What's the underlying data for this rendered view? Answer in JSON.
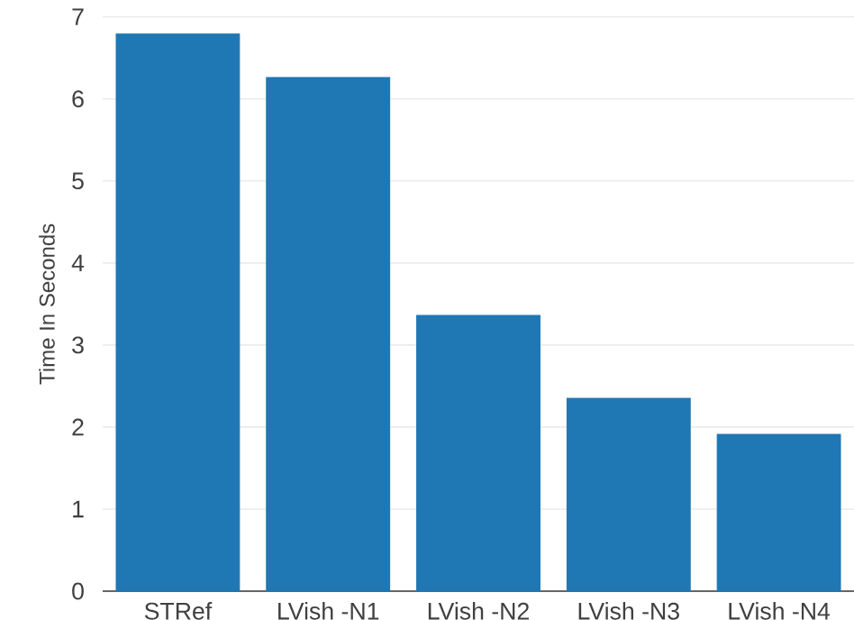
{
  "chart_data": {
    "type": "bar",
    "ylabel": "Time In Seconds",
    "categories": [
      "STRef",
      "LVish -N1",
      "LVish -N2",
      "LVish -N3",
      "LVish -N4"
    ],
    "values": [
      6.79,
      6.26,
      3.36,
      2.35,
      1.91
    ],
    "color": "#1f77b4",
    "ylim": [
      0,
      7
    ],
    "yticks": [
      0,
      1,
      2,
      3,
      4,
      5,
      6,
      7
    ],
    "grid": "y"
  }
}
